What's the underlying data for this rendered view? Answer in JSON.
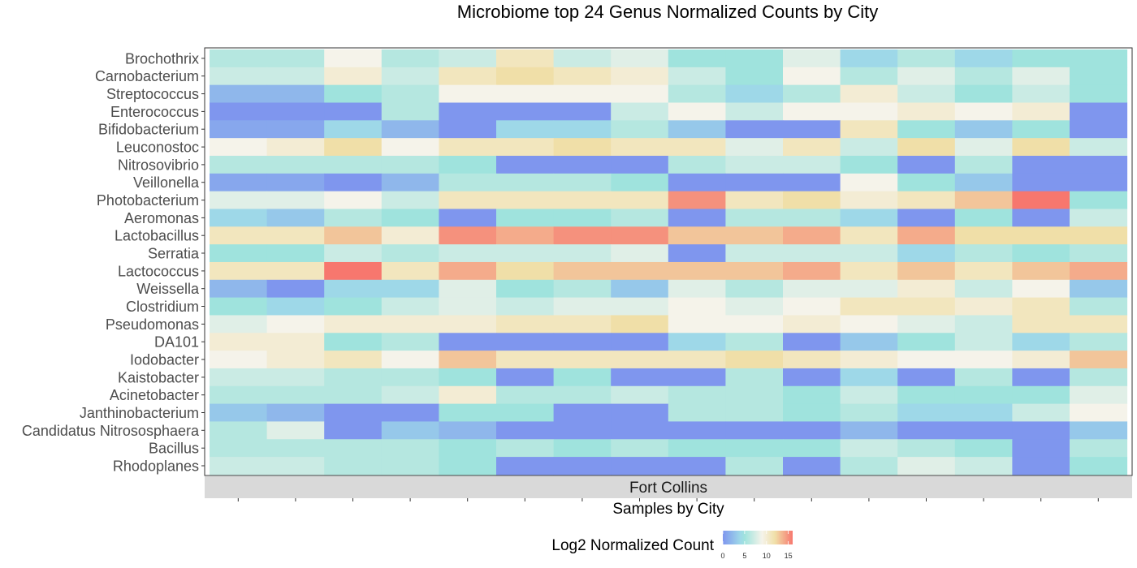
{
  "chart_data": {
    "type": "heatmap",
    "title": "Microbiome top 24 Genus Normalized Counts by City",
    "xlabel": "Samples by City",
    "ylabel": "",
    "facet_label": "Fort Collins",
    "legend_title": "Log2 Normalized Count",
    "legend_ticks": [
      "0",
      "5",
      "10",
      "15"
    ],
    "color_range": [
      0,
      16
    ],
    "colors": [
      "#7f96ee",
      "#9ed8e8",
      "#9fe3dd",
      "#f5f3ea",
      "#f0dfa8",
      "#f7776e"
    ],
    "sample_count": 16,
    "genera": [
      "Brochothrix",
      "Carnobacterium",
      "Streptococcus",
      "Enterococcus",
      "Bifidobacterium",
      "Leuconostoc",
      "Nitrosovibrio",
      "Veillonella",
      "Photobacterium",
      "Aeromonas",
      "Lactobacillus",
      "Serratia",
      "Lactococcus",
      "Weissella",
      "Clostridium",
      "Pseudomonas",
      "DA101",
      "Iodobacter",
      "Kaistobacter",
      "Acinetobacter",
      "Janthinobacterium",
      "Candidatus Nitrososphaera",
      "Bacillus",
      "Rhodoplanes"
    ],
    "values": [
      [
        6,
        6,
        9,
        6,
        7,
        11,
        7,
        8,
        5,
        5,
        8,
        4,
        6,
        4,
        5,
        5
      ],
      [
        7,
        7,
        10,
        7,
        11,
        12,
        11,
        10,
        7,
        5,
        9,
        6,
        8,
        6,
        8,
        5
      ],
      [
        2,
        2,
        5,
        6,
        9,
        9,
        9,
        9,
        6,
        4,
        6,
        10,
        7,
        5,
        7,
        5
      ],
      [
        0,
        0,
        0,
        6,
        0,
        0,
        0,
        7,
        9,
        7,
        9,
        9,
        10,
        9,
        10,
        0
      ],
      [
        1,
        1,
        4,
        2,
        0,
        4,
        4,
        6,
        3,
        0,
        0,
        11,
        5,
        3,
        5,
        0
      ],
      [
        9,
        10,
        12,
        9,
        11,
        11,
        12,
        11,
        11,
        8,
        11,
        7,
        12,
        8,
        12,
        7
      ],
      [
        6,
        6,
        6,
        6,
        5,
        0,
        0,
        0,
        6,
        7,
        7,
        5,
        0,
        6,
        0,
        0
      ],
      [
        1,
        1,
        0,
        2,
        6,
        6,
        6,
        5,
        0,
        0,
        0,
        9,
        5,
        3,
        0,
        0
      ],
      [
        8,
        8,
        9,
        7,
        11,
        11,
        11,
        11,
        15,
        11,
        12,
        10,
        11,
        13,
        16,
        5
      ],
      [
        4,
        3,
        6,
        5,
        0,
        5,
        5,
        6,
        0,
        6,
        6,
        4,
        0,
        5,
        0,
        7
      ],
      [
        11,
        11,
        13,
        10,
        15,
        14,
        15,
        15,
        13,
        13,
        14,
        11,
        14,
        12,
        12,
        12
      ],
      [
        5,
        5,
        7,
        6,
        7,
        7,
        7,
        8,
        0,
        7,
        7,
        7,
        4,
        6,
        5,
        6
      ],
      [
        11,
        11,
        16,
        11,
        14,
        12,
        13,
        13,
        13,
        13,
        14,
        11,
        13,
        11,
        13,
        14
      ],
      [
        2,
        0,
        4,
        4,
        8,
        5,
        6,
        3,
        8,
        6,
        8,
        8,
        10,
        7,
        9,
        3
      ],
      [
        5,
        4,
        5,
        7,
        8,
        7,
        8,
        8,
        9,
        8,
        9,
        11,
        11,
        10,
        11,
        6
      ],
      [
        8,
        9,
        10,
        10,
        10,
        11,
        11,
        12,
        9,
        9,
        10,
        9,
        8,
        7,
        11,
        11
      ],
      [
        10,
        10,
        5,
        6,
        0,
        0,
        0,
        0,
        4,
        6,
        0,
        3,
        5,
        7,
        4,
        6
      ],
      [
        9,
        10,
        11,
        9,
        13,
        11,
        11,
        11,
        11,
        12,
        11,
        10,
        9,
        9,
        10,
        13
      ],
      [
        7,
        7,
        6,
        6,
        5,
        0,
        5,
        0,
        0,
        6,
        0,
        4,
        0,
        6,
        0,
        6
      ],
      [
        6,
        6,
        6,
        7,
        10,
        6,
        6,
        7,
        6,
        6,
        5,
        7,
        5,
        5,
        5,
        8
      ],
      [
        3,
        2,
        0,
        0,
        5,
        5,
        0,
        0,
        6,
        6,
        5,
        6,
        4,
        4,
        7,
        9
      ],
      [
        6,
        8,
        0,
        3,
        2,
        0,
        0,
        0,
        0,
        0,
        0,
        2,
        0,
        0,
        0,
        3
      ],
      [
        6,
        6,
        6,
        6,
        5,
        6,
        5,
        6,
        5,
        5,
        5,
        7,
        6,
        5,
        0,
        6
      ],
      [
        7,
        7,
        6,
        6,
        5,
        0,
        0,
        0,
        0,
        6,
        0,
        6,
        8,
        7,
        0,
        5
      ]
    ]
  }
}
